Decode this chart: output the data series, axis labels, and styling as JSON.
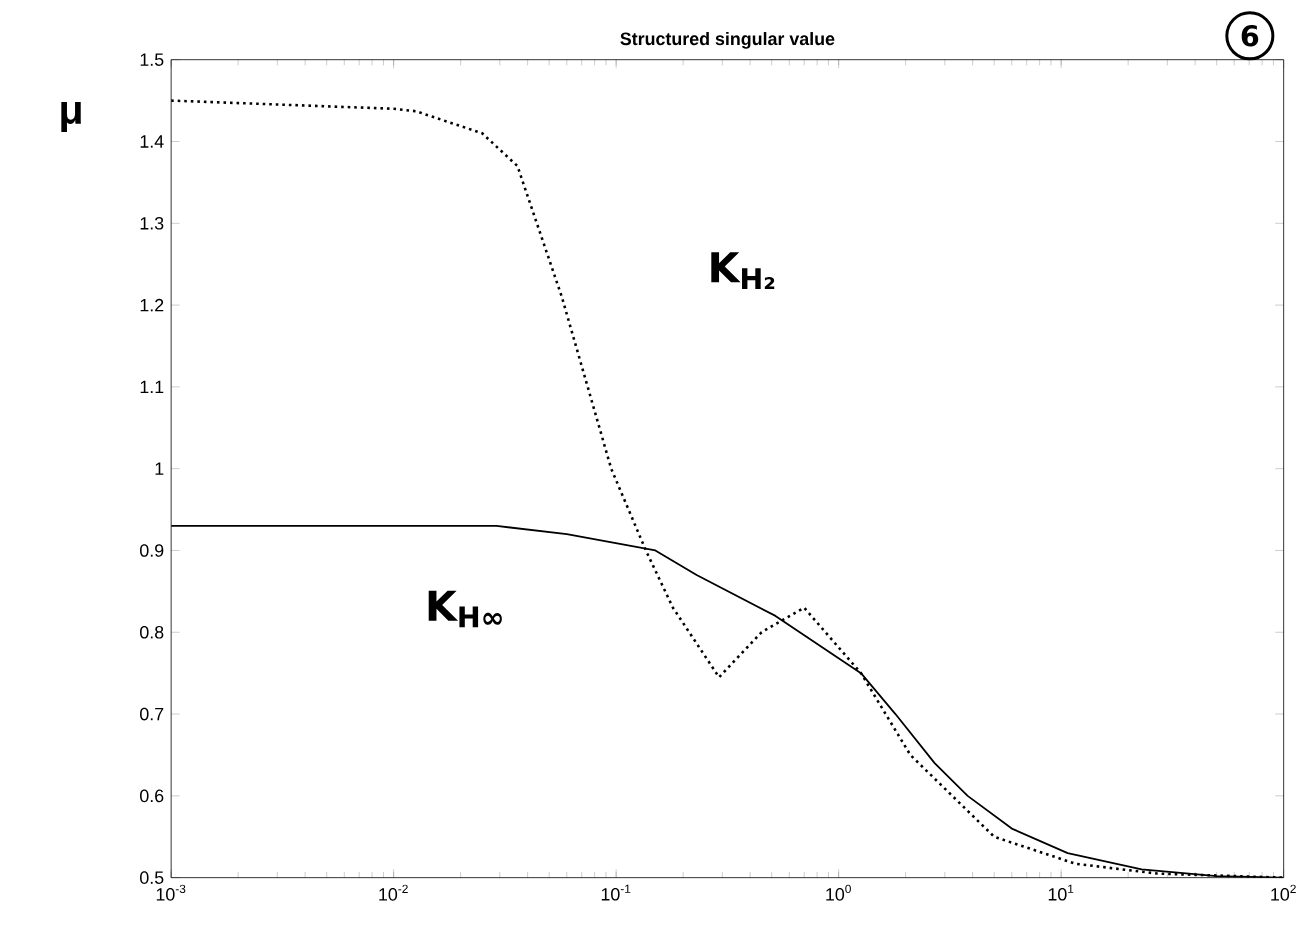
{
  "chart_data": {
    "type": "line",
    "title": "Structured singular value",
    "ylabel": "μ",
    "log": "x",
    "xlim": [
      0.001,
      100
    ],
    "ylim": [
      0.5,
      1.5
    ],
    "xticks": [
      {
        "value": 0.001,
        "label": "10$^{-3}$"
      },
      {
        "value": 0.01,
        "label": "10$^{-2}$"
      },
      {
        "value": 0.1,
        "label": "10$^{-1}$"
      },
      {
        "value": 1,
        "label": "10$^{0}$"
      },
      {
        "value": 10,
        "label": "10$^{1}$"
      },
      {
        "value": 100,
        "label": "10$^{2}$"
      }
    ],
    "yticks": [
      0.5,
      0.6,
      0.7,
      0.8,
      0.9,
      1,
      1.1,
      1.2,
      1.3,
      1.4,
      1.5
    ],
    "grid": false,
    "marker": "none",
    "series": [
      {
        "color": "#000000",
        "line_style": "solid",
        "x": [
          0.001,
          0.01,
          0.029,
          0.06,
          0.15,
          0.23,
          0.52,
          1.26,
          1.8,
          2.7,
          3.8,
          6,
          10.7,
          23,
          50,
          100
        ],
        "values": [
          0.93,
          0.93,
          0.93,
          0.92,
          0.9,
          0.87,
          0.82,
          0.75,
          0.7,
          0.64,
          0.6,
          0.56,
          0.53,
          0.51,
          0.502,
          0.5
        ]
      },
      {
        "color": "#000000",
        "line_style": "dotted",
        "x": [
          0.001,
          0.01,
          0.0126,
          0.025,
          0.036,
          0.057,
          0.095,
          0.136,
          0.18,
          0.29,
          0.45,
          0.7,
          1.26,
          2.1,
          5,
          11.6,
          27,
          100
        ],
        "values": [
          1.45,
          1.44,
          1.437,
          1.41,
          1.37,
          1.21,
          1.0,
          0.9,
          0.83,
          0.745,
          0.8,
          0.83,
          0.75,
          0.65,
          0.55,
          0.517,
          0.505,
          0.5
        ]
      }
    ],
    "annotations": [
      "K$_{H₂}$",
      "K$_{H∞}$",
      "6"
    ]
  }
}
